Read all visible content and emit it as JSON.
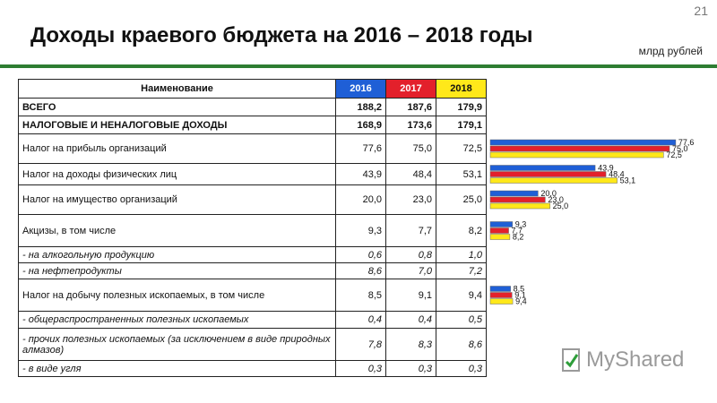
{
  "page_number": "21",
  "title": "Доходы краевого бюджета на 2016 – 2018 годы",
  "units": "млрд рублей",
  "table": {
    "header": {
      "name": "Наименование",
      "y2016": "2016",
      "y2017": "2017",
      "y2018": "2018"
    },
    "rows": [
      {
        "name": "ВСЕГО",
        "v2016": "188,2",
        "v2017": "187,6",
        "v2018": "179,9",
        "style": "bold"
      },
      {
        "name": "НАЛОГОВЫЕ И НЕНАЛОГОВЫЕ ДОХОДЫ",
        "v2016": "168,9",
        "v2017": "173,6",
        "v2018": "179,1",
        "style": "bold"
      },
      {
        "name": "Налог на прибыль организаций",
        "v2016": "77,6",
        "v2017": "75,0",
        "v2018": "72,5",
        "style": "normal"
      },
      {
        "name": "Налог на доходы физических лиц",
        "v2016": "43,9",
        "v2017": "48,4",
        "v2018": "53,1",
        "style": "normal"
      },
      {
        "name": "Налог на имущество организаций",
        "v2016": "20,0",
        "v2017": "23,0",
        "v2018": "25,0",
        "style": "normal"
      },
      {
        "name": "Акцизы, в том числе",
        "v2016": "9,3",
        "v2017": "7,7",
        "v2018": "8,2",
        "style": "normal"
      },
      {
        "name": "- на алкогольную продукцию",
        "v2016": "0,6",
        "v2017": "0,8",
        "v2018": "1,0",
        "style": "italic"
      },
      {
        "name": "- на нефтепродукты",
        "v2016": "8,6",
        "v2017": "7,0",
        "v2018": "7,2",
        "style": "italic"
      },
      {
        "name": "Налог на добычу полезных ископаемых, в том числе",
        "v2016": "8,5",
        "v2017": "9,1",
        "v2018": "9,4",
        "style": "normal"
      },
      {
        "name": "- общераспространенных полезных ископаемых",
        "v2016": "0,4",
        "v2017": "0,4",
        "v2018": "0,5",
        "style": "italic"
      },
      {
        "name": "- прочих полезных ископаемых (за исключением в виде природных алмазов)",
        "v2016": "7,8",
        "v2017": "8,3",
        "v2018": "8,6",
        "style": "italic"
      },
      {
        "name": "- в виде угля",
        "v2016": "0,3",
        "v2017": "0,3",
        "v2018": "0,3",
        "style": "italic"
      }
    ]
  },
  "chart_data": {
    "type": "bar",
    "orientation": "horizontal",
    "categories": [
      "Налог на прибыль организаций",
      "Налог на доходы физических лиц",
      "Налог на имущество организаций",
      "Акцизы, в том числе",
      "Налог на добычу полезных ископаемых, в том числе"
    ],
    "series": [
      {
        "name": "2016",
        "color": "#1f5fd6",
        "values": [
          77.6,
          43.9,
          20.0,
          9.3,
          8.5
        ],
        "labels": [
          "77,6",
          "43,9",
          "20,0",
          "9,3",
          "8,5"
        ]
      },
      {
        "name": "2017",
        "color": "#e3202b",
        "values": [
          75.0,
          48.4,
          23.0,
          7.7,
          9.1
        ],
        "labels": [
          "75,0",
          "48,4",
          "23,0",
          "7,7",
          "9,1"
        ]
      },
      {
        "name": "2018",
        "color": "#ffe81a",
        "values": [
          72.5,
          53.1,
          25.0,
          8.2,
          9.4
        ],
        "labels": [
          "72,5",
          "53,1",
          "25,0",
          "8,2",
          "9,4"
        ]
      }
    ],
    "xlim": [
      0,
      78
    ],
    "grid": false,
    "legend": "none"
  },
  "logo": {
    "text": "MyShared",
    "icon": "myshared-logo-icon",
    "accent": "#2e9e3a"
  },
  "colors": {
    "title_rule": "#2e7d32"
  }
}
